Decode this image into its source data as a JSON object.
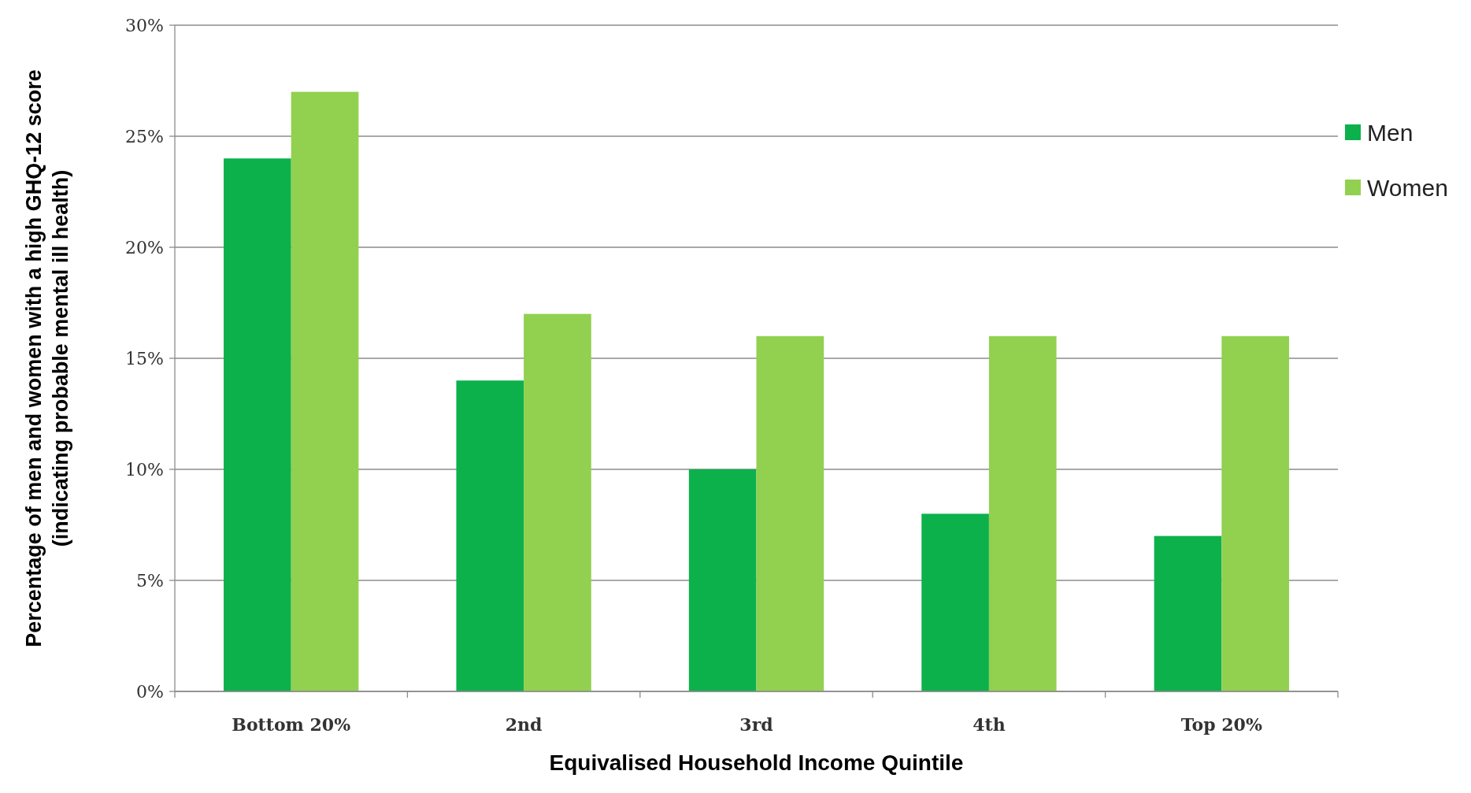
{
  "chart_data": {
    "type": "bar",
    "xlabel": "Equivalised Household Income Quintile",
    "ylabel": "Percentage of men and women with a high GHQ-12 score\n(indicating probable mental ill health)",
    "categories": [
      "Bottom 20%",
      "2nd",
      "3rd",
      "4th",
      "Top 20%"
    ],
    "series": [
      {
        "name": "Men",
        "color": "#0db14b",
        "values": [
          24,
          14,
          10,
          8,
          7
        ]
      },
      {
        "name": "Women",
        "color": "#92d050",
        "values": [
          27,
          17,
          16,
          16,
          16
        ]
      }
    ],
    "ylim": [
      0,
      30
    ],
    "yticks": [
      {
        "value": 0,
        "label": "0%"
      },
      {
        "value": 5,
        "label": "5%"
      },
      {
        "value": 10,
        "label": "10%"
      },
      {
        "value": 15,
        "label": "15%"
      },
      {
        "value": 20,
        "label": "20%"
      },
      {
        "value": 25,
        "label": "25%"
      },
      {
        "value": 30,
        "label": "30%"
      }
    ],
    "grid": "y",
    "legend": "right"
  }
}
